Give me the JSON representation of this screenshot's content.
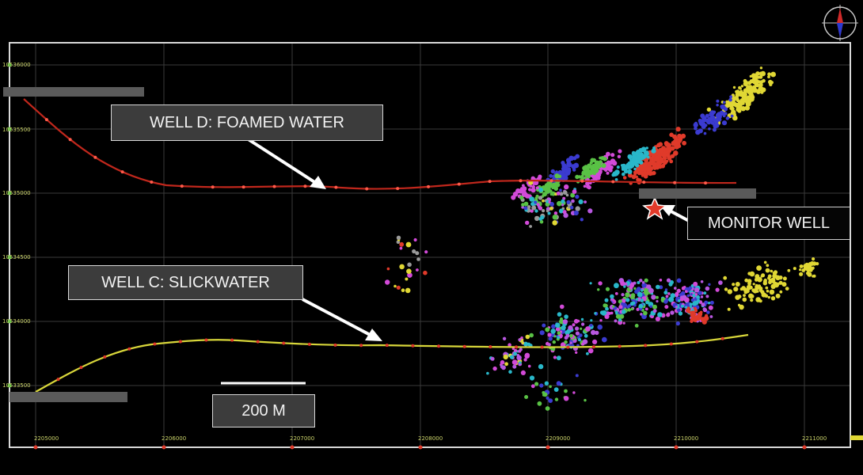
{
  "labels": {
    "well_d": "WELL D:  FOAMED WATER",
    "well_c": "WELL C:  SLICKWATER",
    "monitor": "MONITOR WELL",
    "scale": "200 M"
  },
  "axes": {
    "x_ticks": [
      "2205000",
      "2206000",
      "2207000",
      "2208000",
      "2209000",
      "2210000",
      "2211000"
    ],
    "y_ticks": [
      "10536000",
      "10535500",
      "10535000",
      "10534500",
      "10534000",
      "10533500"
    ]
  },
  "colors": {
    "well_d_line": "#c0271c",
    "well_c_line": "#d8d63a",
    "frame": "#d9d9d9",
    "grid": "#3a3a3a",
    "tick_text": "#cbd36a",
    "monitor_star": "#e23a2a",
    "event_colors": [
      "#d24ad8",
      "#3b3bd0",
      "#29b7c9",
      "#59c145",
      "#e0d734",
      "#e03a2a",
      "#9a9a9a",
      "#b857e0"
    ]
  },
  "icons": {
    "compass": "compass-icon",
    "monitor": "star-icon"
  }
}
